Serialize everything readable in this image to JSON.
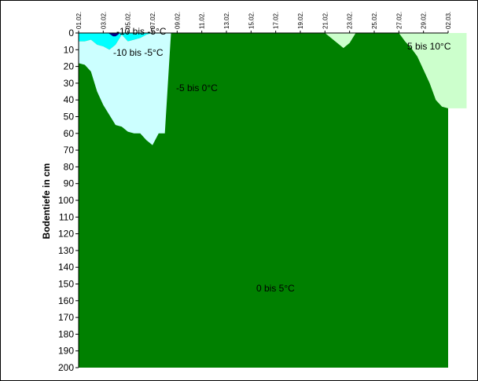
{
  "chart_data": {
    "type": "area",
    "ylabel": "Bodentiefe in cm",
    "x_categories": [
      "01.02.",
      "03.02.",
      "05.02.",
      "07.02.",
      "09.02.",
      "11.02.",
      "13.02.",
      "15.02.",
      "17.02.",
      "19.02.",
      "21.02.",
      "23.02.",
      "25.02.",
      "27.02.",
      "29.02.",
      "02.03."
    ],
    "y_ticks": [
      0,
      10,
      20,
      30,
      40,
      50,
      60,
      70,
      80,
      90,
      100,
      110,
      120,
      130,
      140,
      150,
      160,
      170,
      180,
      190,
      200
    ],
    "ylim": [
      0,
      200
    ],
    "y_inverted": true,
    "grid": false,
    "bands": [
      {
        "name": "-10 bis -5°C",
        "color": "#00ffff"
      },
      {
        "name": "-5 bis 0°C",
        "color": "#ccffff"
      },
      {
        "name": "0 bis 5°C",
        "color": "#008000"
      },
      {
        "name": "5 bis 10°C",
        "color": "#ccffcc"
      }
    ],
    "annotations": [
      "-10 bis -5°C",
      "-10 bis -5°C",
      "-5 bis 0°C",
      "0 bis 5°C",
      "5 bis 10°C"
    ],
    "extra_layers": [
      {
        "color": "#00008b",
        "x": [
          4.8,
          5.2,
          5.6,
          6.0,
          6.4,
          6.7
        ],
        "top": [
          0,
          0,
          0,
          0,
          0,
          0
        ],
        "bottom": [
          0,
          1,
          2,
          2,
          1,
          0
        ]
      }
    ],
    "layers": [
      {
        "color": "#00ffff",
        "x": [
          0,
          1,
          2,
          3,
          4,
          5,
          6,
          7,
          8,
          9,
          10,
          11,
          12,
          12.5
        ],
        "top": [
          0,
          0,
          0,
          0,
          0,
          0,
          0,
          0,
          0,
          0,
          0,
          0,
          0,
          0
        ],
        "bottom": [
          5,
          5,
          4,
          7,
          8,
          10,
          7,
          1,
          5,
          4,
          3,
          1,
          0,
          0
        ]
      },
      {
        "color": "#ccffff",
        "x": [
          0,
          1,
          2,
          3,
          4,
          5,
          6,
          7,
          8,
          9,
          10,
          11,
          12,
          13,
          14,
          15,
          16,
          17,
          18,
          19,
          20,
          21,
          22,
          23,
          24
        ],
        "top": [
          5,
          5,
          4,
          7,
          8,
          10,
          7,
          1,
          5,
          4,
          3,
          1,
          0,
          0,
          0,
          0,
          0,
          0,
          0,
          0,
          0,
          0,
          0,
          0,
          0
        ],
        "bottom": [
          18,
          19,
          23,
          35,
          43,
          49,
          55,
          56,
          59,
          60,
          60,
          64,
          67,
          60,
          60,
          0,
          0,
          0,
          0,
          0,
          0,
          0,
          0,
          0,
          0
        ]
      },
      {
        "color": "#ccffcc",
        "x": [
          0,
          40,
          41,
          42,
          43,
          44,
          45,
          46,
          47,
          48,
          49,
          50,
          51,
          52,
          53,
          54,
          55,
          56,
          57,
          58,
          59,
          60,
          61,
          62,
          63
        ],
        "top": [
          0,
          0,
          0,
          0,
          0,
          0,
          0,
          0,
          0,
          0,
          0,
          0,
          0,
          0,
          0,
          0,
          0,
          0,
          0,
          0,
          0,
          0,
          0,
          0,
          0
        ],
        "bottom": [
          0,
          0,
          3,
          6,
          9,
          6,
          0,
          0,
          0,
          0,
          0,
          0,
          0,
          0,
          5,
          9,
          14,
          22,
          30,
          40,
          44,
          45,
          45,
          45,
          45
        ]
      }
    ]
  }
}
